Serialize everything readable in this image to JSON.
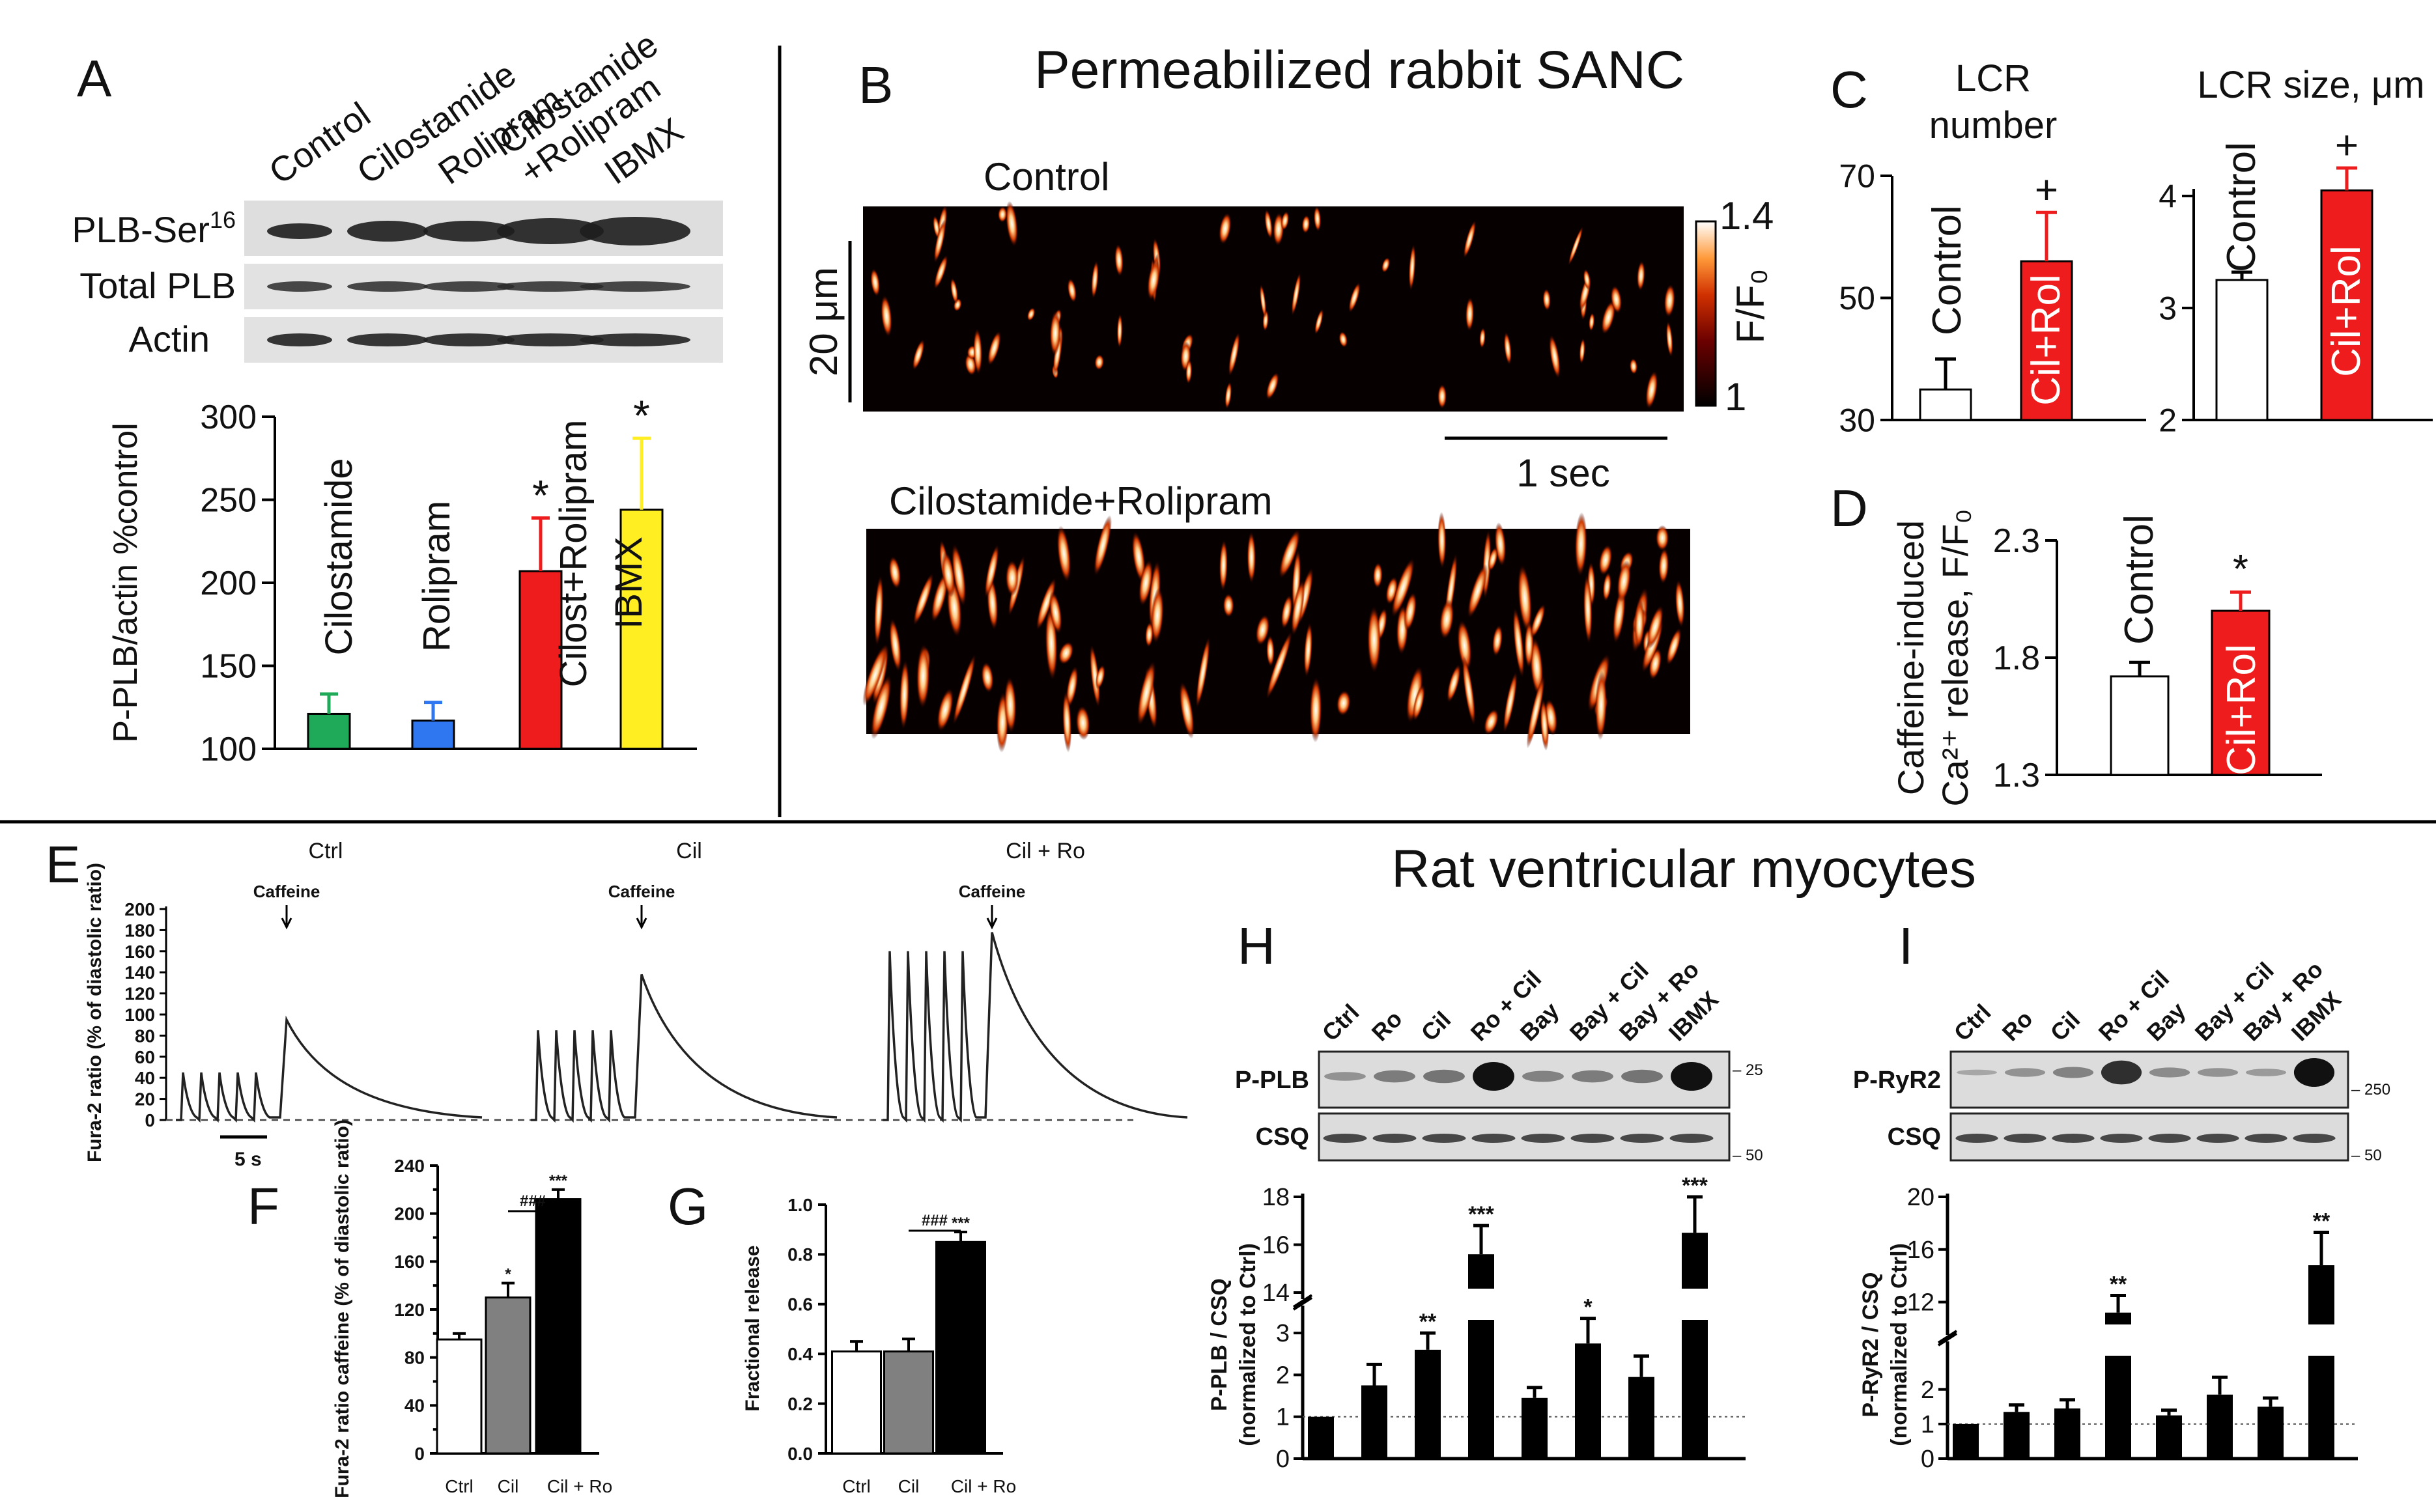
{
  "panel_labels": {
    "A": "A",
    "B": "B",
    "C": "C",
    "D": "D",
    "E": "E",
    "F": "F",
    "G": "G",
    "H": "H",
    "I": "I"
  },
  "section_titles": {
    "sanc": "Permeabilized rabbit SANC",
    "rat": "Rat ventricular myocytes"
  },
  "blots": {
    "a": {
      "lanes": [
        "Control",
        "Cilostamide",
        "Rolipram",
        "Cilostamide\n+Rolipram",
        "IBMX"
      ],
      "rows": [
        "PLB-Ser16",
        "Total PLB",
        "Actin"
      ]
    },
    "h": {
      "lanes": [
        "Ctrl",
        "Ro",
        "Cil",
        "Ro + Cil",
        "Bay",
        "Bay + Cil",
        "Bay + Ro",
        "IBMX"
      ],
      "rows": [
        "P-PLB",
        "CSQ"
      ],
      "markers": [
        "– 25",
        "– 50"
      ]
    },
    "i": {
      "lanes": [
        "Ctrl",
        "Ro",
        "Cil",
        "Ro + Cil",
        "Bay",
        "Bay + Cil",
        "Bay + Ro",
        "IBMX"
      ],
      "rows": [
        "P-RyR2",
        "CSQ"
      ],
      "markers": [
        "– 250",
        "– 50"
      ]
    }
  },
  "sanc_images": {
    "control_label": "Control",
    "treated_label": "Cilostamide+Rolipram",
    "scale_y": "20 μm",
    "scale_x": "1 sec",
    "colorbar_max": "1.4",
    "colorbar_min": "1",
    "colorbar_label": "F/F₀"
  },
  "traces": {
    "ylabel": "Fura-2 ratio (% of diastolic ratio)",
    "yticks": [
      "0",
      "20",
      "40",
      "60",
      "80",
      "100",
      "120",
      "140",
      "160",
      "180",
      "200"
    ],
    "caffeine_label": "Caffeine",
    "scalebar": "5 s",
    "titles": [
      "Ctrl",
      "Cil",
      "Cil + Ro"
    ],
    "transient_peaks": [
      45,
      85,
      160
    ],
    "caffeine_peaks": [
      95,
      138,
      178
    ]
  },
  "chart_data": [
    {
      "id": "A",
      "type": "bar",
      "categories": [
        "Cilostamide",
        "Rolipram",
        "Cilost+Rolipram",
        "IBMX"
      ],
      "values": [
        121,
        117,
        207,
        244
      ],
      "errors": [
        12,
        11,
        32,
        43
      ],
      "colors": [
        "#1faa59",
        "#2e77f0",
        "#ee1c1c",
        "#ffee22"
      ],
      "bar_labels": [
        "Cilostamide",
        "Rolipram",
        "Cilost+Rolipram",
        "IBMX"
      ],
      "significance": [
        "",
        "",
        "*",
        "*"
      ],
      "ylabel": "P-PLB/actin %control",
      "ylim": [
        100,
        300
      ],
      "yticks": [
        "100",
        "150",
        "200",
        "250",
        "300"
      ]
    },
    {
      "id": "C1",
      "type": "bar",
      "title": "LCR number",
      "categories": [
        "Control",
        "Cil+Rol"
      ],
      "values": [
        35,
        56
      ],
      "errors": [
        5,
        8
      ],
      "colors": [
        "#ffffff",
        "#ee1c1c"
      ],
      "significance": [
        "",
        "+"
      ],
      "ylim": [
        30,
        70
      ],
      "yticks": [
        "30",
        "50",
        "70"
      ]
    },
    {
      "id": "C2",
      "type": "bar",
      "title": "LCR size, μm",
      "categories": [
        "Control",
        "Cil+Rol"
      ],
      "values": [
        3.25,
        4.05
      ],
      "errors": [
        0.07,
        0.2
      ],
      "colors": [
        "#ffffff",
        "#ee1c1c"
      ],
      "significance": [
        "",
        "+"
      ],
      "ylim": [
        2,
        4.5
      ],
      "yticks": [
        "2",
        "3",
        "4"
      ]
    },
    {
      "id": "D",
      "type": "bar",
      "categories": [
        "Control",
        "Cil+Rol"
      ],
      "values": [
        1.72,
        2.0
      ],
      "errors": [
        0.06,
        0.08
      ],
      "colors": [
        "#ffffff",
        "#ee1c1c"
      ],
      "significance": [
        "",
        "*"
      ],
      "ylabel": "Caffeine-induced Ca²⁺ release, F/F₀",
      "ylim": [
        1.3,
        2.3
      ],
      "yticks": [
        "1.3",
        "1.8",
        "2.3"
      ]
    },
    {
      "id": "F",
      "type": "bar",
      "categories": [
        "Ctrl",
        "Cil",
        "Cil + Ro"
      ],
      "values": [
        95,
        130,
        212
      ],
      "errors": [
        5,
        12,
        8
      ],
      "colors": [
        "#ffffff",
        "#808080",
        "#000000"
      ],
      "significance": [
        "",
        "*",
        "***"
      ],
      "bracket_label": "###",
      "ylabel": "Fura-2 ratio caffeine (% of diastolic ratio)",
      "ylim": [
        0,
        240
      ],
      "yticks": [
        "0",
        "40",
        "80",
        "120",
        "160",
        "200",
        "240"
      ],
      "yminor": [
        "20",
        "60",
        "100",
        "140",
        "180",
        "220"
      ]
    },
    {
      "id": "G",
      "type": "bar",
      "categories": [
        "Ctrl",
        "Cil",
        "Cil + Ro"
      ],
      "values": [
        0.41,
        0.41,
        0.85
      ],
      "errors": [
        0.04,
        0.05,
        0.04
      ],
      "colors": [
        "#ffffff",
        "#808080",
        "#000000"
      ],
      "significance": [
        "",
        "",
        "***"
      ],
      "bracket_label": "###",
      "ylabel": "Fractional release",
      "ylim": [
        0,
        1.0
      ],
      "yticks": [
        "0.0",
        "0.2",
        "0.4",
        "0.6",
        "0.8",
        "1.0"
      ]
    },
    {
      "id": "H",
      "type": "bar",
      "categories": [
        "Ctrl",
        "Ro",
        "Cil",
        "Ro + Cil",
        "Bay",
        "Bay + Cil",
        "Bay + Ro",
        "IBMX"
      ],
      "values": [
        1.0,
        1.75,
        2.6,
        15.6,
        1.45,
        2.75,
        1.95,
        16.5
      ],
      "errors": [
        0,
        0.5,
        0.4,
        1.2,
        0.25,
        0.6,
        0.5,
        1.5
      ],
      "significance": [
        "",
        "",
        "**",
        "***",
        "",
        "*",
        "",
        "***"
      ],
      "ylabel": "P-PLB / CSQ (normalized to Ctrl)",
      "break": [
        3.5,
        14
      ],
      "ylim": [
        0,
        18
      ],
      "yticks_low": [
        "0",
        "1",
        "2",
        "3"
      ],
      "yticks_high": [
        "14",
        "16",
        "18"
      ]
    },
    {
      "id": "I",
      "type": "bar",
      "categories": [
        "Ctrl",
        "Ro",
        "Cil",
        "Ro + Cil",
        "Bay",
        "Bay + Cil",
        "Bay + Ro",
        "IBMX"
      ],
      "values": [
        1.0,
        1.35,
        1.45,
        11.2,
        1.25,
        1.85,
        1.5,
        14.8
      ],
      "errors": [
        0,
        0.2,
        0.25,
        1.3,
        0.15,
        0.5,
        0.25,
        2.5
      ],
      "significance": [
        "",
        "",
        "",
        "**",
        "",
        "",
        "",
        "**"
      ],
      "ylabel": "P-RyR2 / CSQ (normalized to Ctrl)",
      "break": [
        3.2,
        10
      ],
      "ylim": [
        0,
        20
      ],
      "yticks_low": [
        "0",
        "1",
        "2"
      ],
      "yticks_high": [
        "12",
        "16",
        "20"
      ]
    }
  ]
}
